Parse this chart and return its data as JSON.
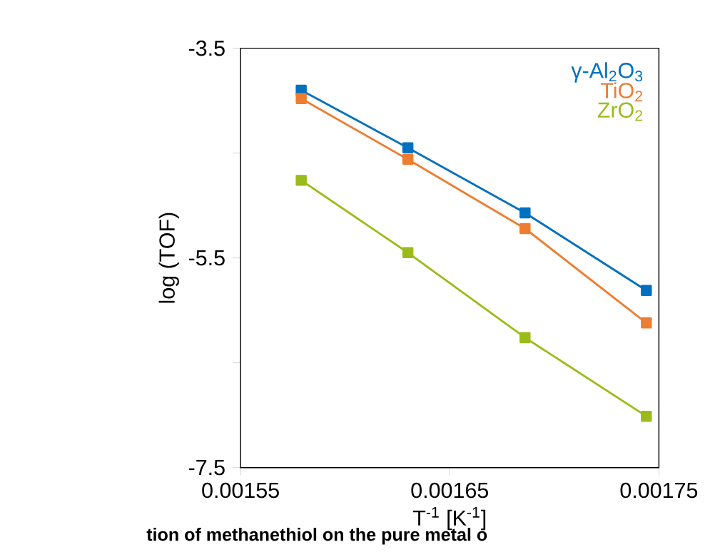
{
  "chart_data": {
    "type": "line",
    "xlabel": "T$^{-1}$ [K$^{-1}$]",
    "ylabel": "log (TOF)",
    "annotations": [
      "tion of methanethiol on the pure metal o"
    ],
    "xlim": [
      0.00155,
      0.00175
    ],
    "xticks": [
      0.00155,
      0.00165,
      0.00175
    ],
    "ylim": [
      -7.5,
      -3.5
    ],
    "yticks": [
      -3.5,
      {
        "value": -4.5,
        "label": null
      },
      -5.5,
      {
        "value": -6.5,
        "label": null
      },
      -7.5
    ],
    "marker": "square",
    "legend": "top right",
    "grid": false,
    "x": [
      0.001579,
      0.00163,
      0.001686,
      0.001744
    ],
    "series": [
      {
        "name": "γ-Al$_{2}$O$_{3}$",
        "color": "#0070c0",
        "values": [
          -3.9,
          -4.45,
          -5.07,
          -5.81
        ]
      },
      {
        "name": "TiO$_{2}$",
        "color": "#ed7d31",
        "values": [
          -3.98,
          -4.56,
          -5.22,
          -6.12
        ]
      },
      {
        "name": "ZrO$_{2}$",
        "color": "#9bbb1a",
        "values": [
          -4.76,
          -5.45,
          -6.26,
          -7.01
        ]
      }
    ]
  }
}
